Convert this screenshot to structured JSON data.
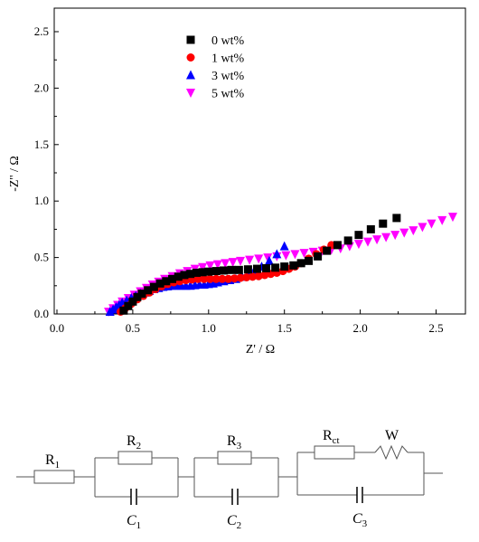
{
  "chart_data": {
    "type": "scatter",
    "xlabel": "Z' / Ω",
    "ylabel": "-Z'' / Ω",
    "xlim": [
      0.0,
      2.7
    ],
    "ylim": [
      0.0,
      2.7
    ],
    "x_ticks": [
      "0.0",
      "0.5",
      "1.0",
      "1.5",
      "2.0",
      "2.5"
    ],
    "y_ticks": [
      "0.0",
      "0.5",
      "1.0",
      "1.5",
      "2.0",
      "2.5"
    ],
    "legend_position": "top-center",
    "series": [
      {
        "name": "0 wt%",
        "marker": "square",
        "color": "#000000",
        "x": [
          0.44,
          0.47,
          0.5,
          0.53,
          0.56,
          0.6,
          0.64,
          0.68,
          0.72,
          0.76,
          0.8,
          0.84,
          0.88,
          0.92,
          0.96,
          1.0,
          1.05,
          1.1,
          1.15,
          1.2,
          1.26,
          1.32,
          1.38,
          1.44,
          1.5,
          1.56,
          1.61,
          1.66,
          1.72,
          1.78,
          1.85,
          1.92,
          1.99,
          2.07,
          2.15,
          2.24
        ],
        "y": [
          0.03,
          0.07,
          0.11,
          0.15,
          0.18,
          0.21,
          0.24,
          0.27,
          0.29,
          0.31,
          0.33,
          0.345,
          0.355,
          0.365,
          0.37,
          0.375,
          0.38,
          0.385,
          0.39,
          0.39,
          0.395,
          0.4,
          0.405,
          0.41,
          0.42,
          0.43,
          0.45,
          0.47,
          0.51,
          0.56,
          0.61,
          0.65,
          0.7,
          0.75,
          0.8,
          0.85
        ]
      },
      {
        "name": "1 wt%",
        "marker": "circle",
        "color": "#ff0000",
        "x": [
          0.42,
          0.45,
          0.49,
          0.53,
          0.57,
          0.61,
          0.65,
          0.69,
          0.73,
          0.77,
          0.81,
          0.85,
          0.89,
          0.93,
          0.97,
          1.01,
          1.05,
          1.09,
          1.13,
          1.17,
          1.21,
          1.25,
          1.29,
          1.33,
          1.37,
          1.41,
          1.45,
          1.49,
          1.53,
          1.57,
          1.61,
          1.66,
          1.71,
          1.76,
          1.81
        ],
        "y": [
          0.02,
          0.05,
          0.09,
          0.13,
          0.16,
          0.19,
          0.22,
          0.245,
          0.265,
          0.28,
          0.29,
          0.3,
          0.305,
          0.31,
          0.31,
          0.31,
          0.31,
          0.31,
          0.31,
          0.315,
          0.32,
          0.325,
          0.33,
          0.335,
          0.345,
          0.355,
          0.365,
          0.38,
          0.4,
          0.42,
          0.45,
          0.49,
          0.53,
          0.57,
          0.61
        ]
      },
      {
        "name": "3 wt%",
        "marker": "triangle-up",
        "color": "#0000ff",
        "x": [
          0.35,
          0.37,
          0.39,
          0.41,
          0.43,
          0.46,
          0.49,
          0.52,
          0.55,
          0.58,
          0.61,
          0.64,
          0.67,
          0.7,
          0.73,
          0.76,
          0.79,
          0.82,
          0.85,
          0.88,
          0.91,
          0.94,
          0.97,
          1.0,
          1.03,
          1.06,
          1.1,
          1.14,
          1.18,
          1.22,
          1.26,
          1.3,
          1.35,
          1.4,
          1.45,
          1.5
        ],
        "y": [
          0.02,
          0.04,
          0.06,
          0.08,
          0.1,
          0.12,
          0.14,
          0.16,
          0.18,
          0.19,
          0.205,
          0.22,
          0.23,
          0.24,
          0.245,
          0.25,
          0.25,
          0.25,
          0.25,
          0.25,
          0.255,
          0.26,
          0.26,
          0.265,
          0.27,
          0.28,
          0.29,
          0.3,
          0.31,
          0.33,
          0.35,
          0.38,
          0.42,
          0.47,
          0.53,
          0.6
        ]
      },
      {
        "name": "5 wt%",
        "marker": "triangle-down",
        "color": "#ff00ff",
        "x": [
          0.34,
          0.37,
          0.4,
          0.43,
          0.47,
          0.51,
          0.55,
          0.59,
          0.63,
          0.67,
          0.71,
          0.76,
          0.81,
          0.86,
          0.91,
          0.96,
          1.01,
          1.06,
          1.11,
          1.16,
          1.21,
          1.27,
          1.33,
          1.39,
          1.45,
          1.51,
          1.57,
          1.63,
          1.69,
          1.75,
          1.81,
          1.87,
          1.93,
          1.99,
          2.05,
          2.11,
          2.17,
          2.23,
          2.29,
          2.35,
          2.41,
          2.47,
          2.54,
          2.61
        ],
        "y": [
          0.02,
          0.05,
          0.08,
          0.11,
          0.14,
          0.17,
          0.2,
          0.23,
          0.26,
          0.285,
          0.31,
          0.335,
          0.36,
          0.38,
          0.4,
          0.415,
          0.43,
          0.44,
          0.45,
          0.46,
          0.47,
          0.48,
          0.49,
          0.5,
          0.51,
          0.52,
          0.53,
          0.54,
          0.55,
          0.56,
          0.57,
          0.58,
          0.6,
          0.62,
          0.64,
          0.66,
          0.68,
          0.7,
          0.72,
          0.74,
          0.77,
          0.8,
          0.83,
          0.86
        ]
      }
    ]
  },
  "circuit": {
    "r1": {
      "symbol": "R",
      "sub": "1"
    },
    "r2": {
      "symbol": "R",
      "sub": "2"
    },
    "r3": {
      "symbol": "R",
      "sub": "3"
    },
    "rct": {
      "symbol": "R",
      "sub": "ct"
    },
    "w": {
      "symbol": "W"
    },
    "c1": {
      "symbol": "C",
      "sub": "1"
    },
    "c2": {
      "symbol": "C",
      "sub": "2"
    },
    "c3": {
      "symbol": "C",
      "sub": "3"
    }
  }
}
